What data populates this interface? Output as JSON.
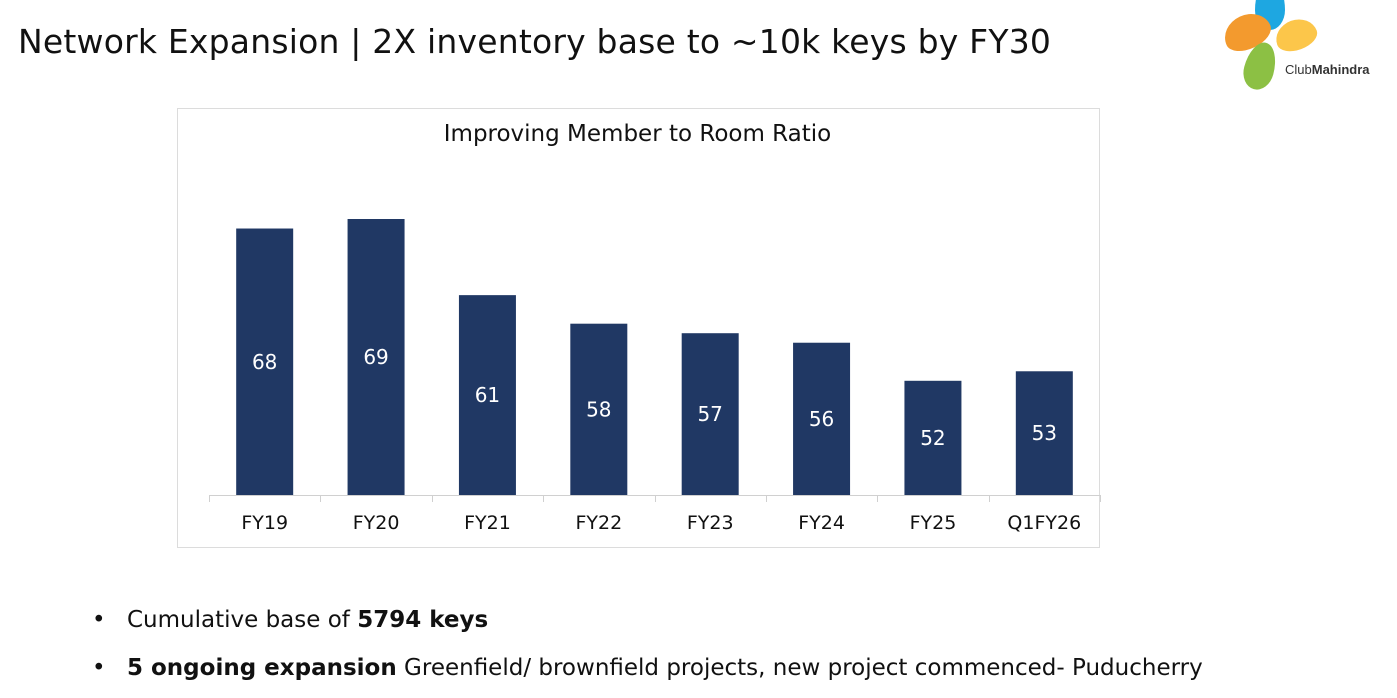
{
  "header": {
    "title": "Network Expansion | 2X inventory base to ~10k keys by FY30"
  },
  "logo": {
    "text_light": "Club",
    "text_bold": "Mahindra"
  },
  "chart_data": {
    "type": "bar",
    "title": "Improving Member to Room Ratio",
    "categories": [
      "FY19",
      "FY20",
      "FY21",
      "FY22",
      "FY23",
      "FY24",
      "FY25",
      "Q1FY26"
    ],
    "values": [
      68,
      69,
      61,
      58,
      57,
      56,
      52,
      53
    ],
    "xlabel": "",
    "ylabel": "",
    "ylim": [
      40,
      72
    ],
    "grid": false,
    "bar_color": "#203864",
    "label_color": "#ffffff"
  },
  "bullets": [
    {
      "marker": "•",
      "pre": "Cumulative base of ",
      "bold": "5794 keys",
      "post": ""
    },
    {
      "marker": "•",
      "pre": "",
      "bold": "5 ongoing expansion",
      "post": " Greenfield/ brownfield projects, new project commenced- Puducherry"
    }
  ]
}
